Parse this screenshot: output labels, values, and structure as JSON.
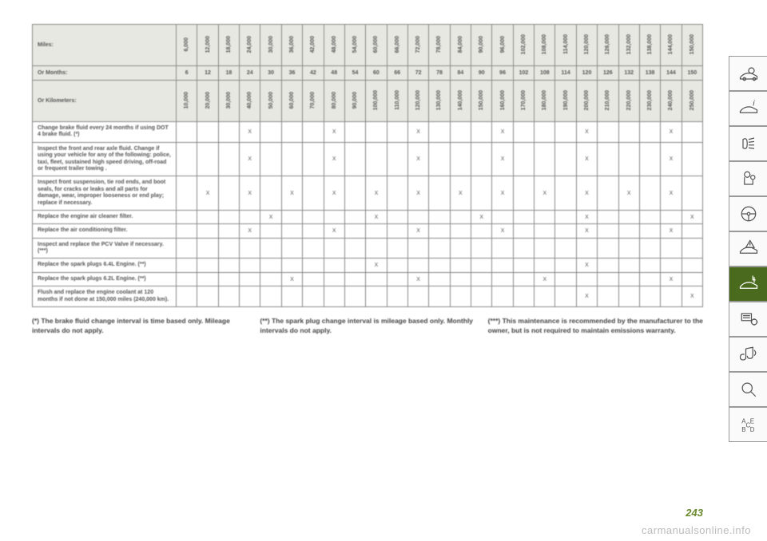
{
  "table": {
    "row_label_header": "Miles:",
    "months_label": "Or Months:",
    "km_label": "Or Kilometers:",
    "miles": [
      "6,000",
      "12,000",
      "18,000",
      "24,000",
      "30,000",
      "36,000",
      "42,000",
      "48,000",
      "54,000",
      "60,000",
      "66,000",
      "72,000",
      "78,000",
      "84,000",
      "90,000",
      "96,000",
      "102,000",
      "108,000",
      "114,000",
      "120,000",
      "126,000",
      "132,000",
      "138,000",
      "144,000",
      "150,000"
    ],
    "months": [
      "6",
      "12",
      "18",
      "24",
      "30",
      "36",
      "42",
      "48",
      "54",
      "60",
      "66",
      "72",
      "78",
      "84",
      "90",
      "96",
      "102",
      "108",
      "114",
      "120",
      "126",
      "132",
      "138",
      "144",
      "150"
    ],
    "km": [
      "10,000",
      "20,000",
      "30,000",
      "40,000",
      "50,000",
      "60,000",
      "70,000",
      "80,000",
      "90,000",
      "100,000",
      "110,000",
      "120,000",
      "130,000",
      "140,000",
      "150,000",
      "160,000",
      "170,000",
      "180,000",
      "190,000",
      "200,000",
      "210,000",
      "220,000",
      "230,000",
      "240,000",
      "250,000"
    ],
    "rows": [
      {
        "label": "Change brake fluid every 24 months if using DOT 4 brake fluid. (*)",
        "marks": [
          0,
          0,
          0,
          1,
          0,
          0,
          0,
          1,
          0,
          0,
          0,
          1,
          0,
          0,
          0,
          1,
          0,
          0,
          0,
          1,
          0,
          0,
          0,
          1,
          0
        ]
      },
      {
        "label": "Inspect the front and rear axle fluid. Change if using your vehicle for any of the following: police, taxi, fleet, sustained high speed driving, off-road or frequent trailer towing .",
        "marks": [
          0,
          0,
          0,
          1,
          0,
          0,
          0,
          1,
          0,
          0,
          0,
          1,
          0,
          0,
          0,
          1,
          0,
          0,
          0,
          1,
          0,
          0,
          0,
          1,
          0
        ]
      },
      {
        "label": "Inspect front suspension, tie rod ends, and boot seals, for cracks or leaks and all parts for damage, wear, improper looseness or end play; replace if necessary.",
        "marks": [
          0,
          1,
          0,
          1,
          0,
          1,
          0,
          1,
          0,
          1,
          0,
          1,
          0,
          1,
          0,
          1,
          0,
          1,
          0,
          1,
          0,
          1,
          0,
          1,
          0
        ]
      },
      {
        "label": "Replace the engine air cleaner filter.",
        "marks": [
          0,
          0,
          0,
          0,
          1,
          0,
          0,
          0,
          0,
          1,
          0,
          0,
          0,
          0,
          1,
          0,
          0,
          0,
          0,
          1,
          0,
          0,
          0,
          0,
          1
        ]
      },
      {
        "label": "Replace the air conditioning filter.",
        "marks": [
          0,
          0,
          0,
          1,
          0,
          0,
          0,
          1,
          0,
          0,
          0,
          1,
          0,
          0,
          0,
          1,
          0,
          0,
          0,
          1,
          0,
          0,
          0,
          1,
          0
        ]
      },
      {
        "label": "Inspect and replace the PCV Valve if necessary. (***)",
        "marks": [
          0,
          0,
          0,
          0,
          0,
          0,
          0,
          0,
          0,
          0,
          0,
          0,
          0,
          0,
          0,
          0,
          0,
          0,
          0,
          0,
          0,
          0,
          0,
          0,
          0
        ]
      },
      {
        "label": "Replace the spark plugs 6.4L Engine. (**)",
        "marks": [
          0,
          0,
          0,
          0,
          0,
          0,
          0,
          0,
          0,
          1,
          0,
          0,
          0,
          0,
          0,
          0,
          0,
          0,
          0,
          1,
          0,
          0,
          0,
          0,
          0
        ]
      },
      {
        "label": "Replace the spark plugs 6.2L Engine. (**)",
        "marks": [
          0,
          0,
          0,
          0,
          0,
          1,
          0,
          0,
          0,
          0,
          0,
          1,
          0,
          0,
          0,
          0,
          0,
          1,
          0,
          0,
          0,
          0,
          0,
          1,
          0
        ]
      },
      {
        "label": "Flush and replace the engine coolant at 120 months if not done at 150,000 miles (240,000 km).",
        "marks": [
          0,
          0,
          0,
          0,
          0,
          0,
          0,
          0,
          0,
          0,
          0,
          0,
          0,
          0,
          0,
          0,
          0,
          0,
          0,
          1,
          0,
          0,
          0,
          0,
          1
        ]
      }
    ]
  },
  "footnotes": {
    "a": "(*) The brake fluid change interval is time based only. Mileage intervals do not apply.",
    "b": "(**) The spark plug change interval is mileage based only. Monthly intervals do not apply.",
    "c": "(***) This maintenance is recommended by the manufacturer to the owner, but is not required to maintain emissions warranty."
  },
  "page_number": "243",
  "watermark": "carmanualsonline.info",
  "mark_char": "X"
}
